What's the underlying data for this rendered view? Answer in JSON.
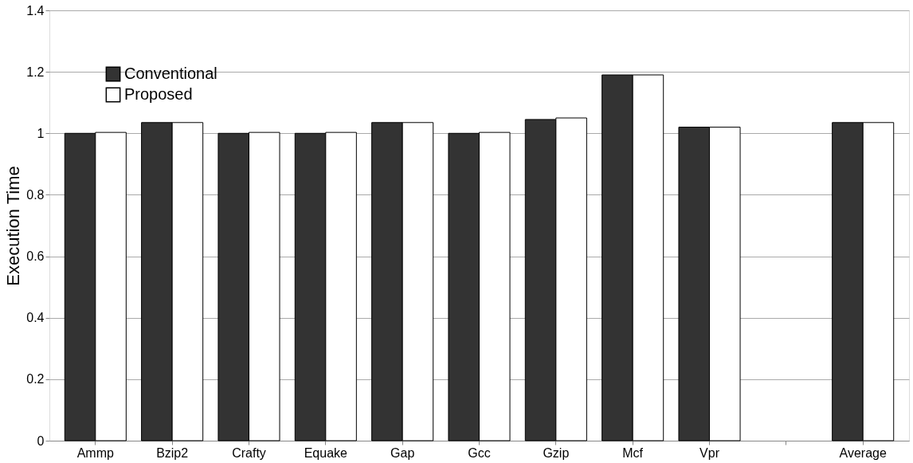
{
  "chart_data": {
    "type": "bar",
    "ylabel": "Execution Time",
    "categories": [
      "Ammp",
      "Bzip2",
      "Crafty",
      "Equake",
      "Gap",
      "Gcc",
      "Gzip",
      "Mcf",
      "Vpr",
      null,
      "Average"
    ],
    "series": [
      {
        "name": "Conventional",
        "color": "#333333",
        "values": [
          1.0,
          1.035,
          1.0,
          1.0,
          1.035,
          1.0,
          1.045,
          1.19,
          1.02,
          null,
          1.035
        ]
      },
      {
        "name": "Proposed",
        "color": "#ffffff",
        "values": [
          1.003,
          1.035,
          1.003,
          1.003,
          1.035,
          1.003,
          1.05,
          1.19,
          1.02,
          null,
          1.035
        ]
      }
    ],
    "ylim": [
      0,
      1.4
    ],
    "yticks": [
      0,
      0.2,
      0.4,
      0.6,
      0.8,
      1,
      1.2,
      1.4
    ],
    "grid": "y",
    "legend": "top left"
  }
}
